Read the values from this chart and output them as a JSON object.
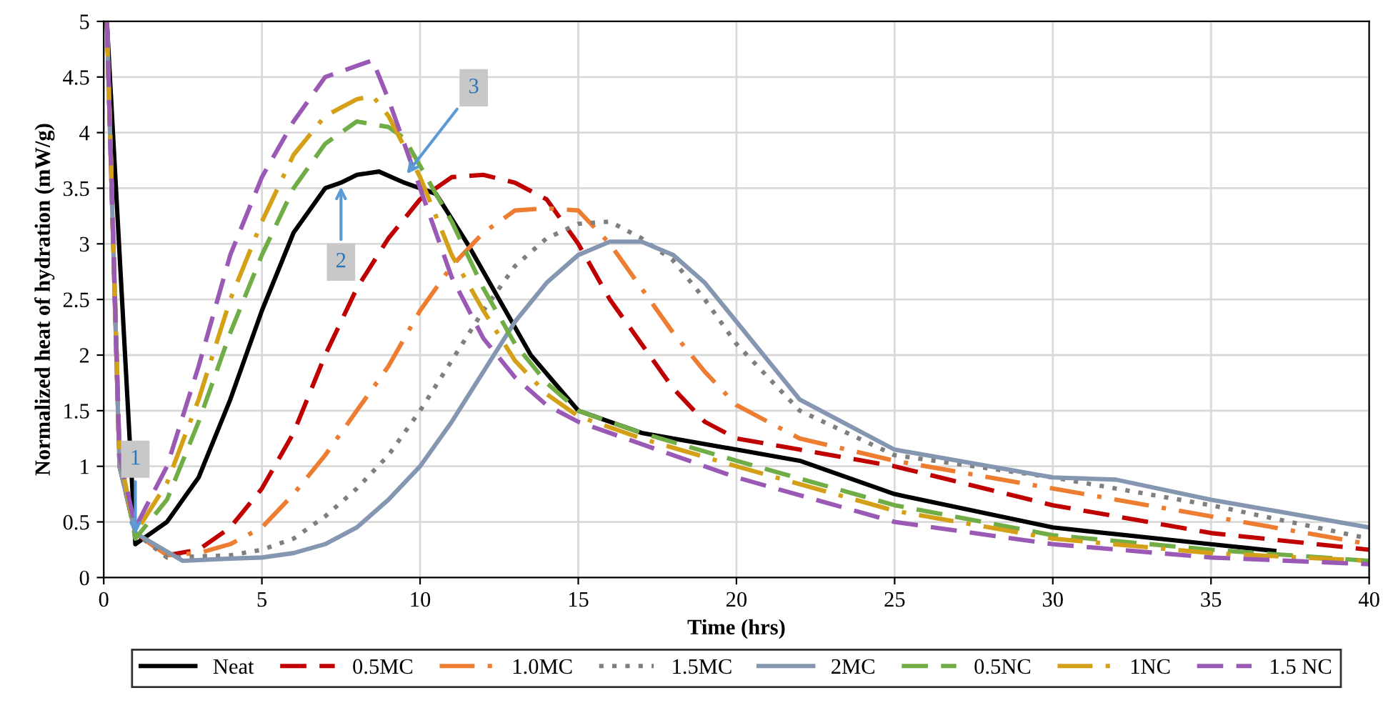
{
  "chart_data": {
    "type": "line",
    "xlabel": "Time (hrs)",
    "ylabel": "Normalized heat of hydration (mW/g)",
    "xlim": [
      0,
      40
    ],
    "xticks": [
      0,
      5,
      10,
      15,
      20,
      25,
      30,
      35,
      40
    ],
    "ylim": [
      0,
      5
    ],
    "yticks": [
      0,
      0.5,
      1,
      1.5,
      2,
      2.5,
      3,
      3.5,
      4,
      4.5,
      5
    ],
    "grid": true,
    "legend": "bottom",
    "marker": "none",
    "series": [
      {
        "name": "Neat",
        "color": "#000000",
        "line_style": "solid",
        "x": [
          0.1,
          1,
          2,
          3,
          4,
          5,
          6,
          7,
          7.5,
          8,
          8.7,
          9.5,
          10.5,
          11.5,
          12.5,
          13.5,
          15,
          17,
          20,
          22,
          25,
          30,
          35,
          37
        ],
        "values": [
          5,
          0.3,
          0.5,
          0.9,
          1.6,
          2.4,
          3.1,
          3.5,
          3.55,
          3.62,
          3.65,
          3.55,
          3.45,
          3.0,
          2.5,
          2.0,
          1.5,
          1.3,
          1.15,
          1.05,
          0.75,
          0.45,
          0.3,
          0.24
        ]
      },
      {
        "name": "0.5MC",
        "color": "#c00000",
        "line_style": "dashed",
        "x": [
          0.1,
          0.5,
          1,
          2,
          3,
          4,
          5,
          6,
          7,
          8,
          9,
          10,
          11,
          12,
          13,
          14,
          15,
          16,
          17,
          18,
          19,
          20,
          22,
          25,
          30,
          35,
          40
        ],
        "values": [
          5,
          1.0,
          0.4,
          0.2,
          0.25,
          0.45,
          0.8,
          1.3,
          2.0,
          2.6,
          3.05,
          3.4,
          3.6,
          3.62,
          3.55,
          3.4,
          3.0,
          2.5,
          2.1,
          1.7,
          1.4,
          1.25,
          1.15,
          1.0,
          0.65,
          0.4,
          0.25
        ]
      },
      {
        "name": "1.0MC",
        "color": "#ed7d31",
        "line_style": "dashdot",
        "x": [
          0.1,
          0.5,
          1,
          2,
          3,
          4,
          5,
          6,
          7,
          8,
          9,
          10,
          11,
          12,
          13,
          14,
          15,
          16,
          17,
          18,
          19,
          20,
          22,
          25,
          30,
          35,
          40
        ],
        "values": [
          5,
          1.0,
          0.4,
          0.2,
          0.22,
          0.3,
          0.45,
          0.75,
          1.1,
          1.5,
          1.9,
          2.4,
          2.8,
          3.1,
          3.3,
          3.32,
          3.3,
          3.0,
          2.6,
          2.2,
          1.85,
          1.55,
          1.25,
          1.05,
          0.8,
          0.55,
          0.3
        ]
      },
      {
        "name": "1.5MC",
        "color": "#7f7f7f",
        "line_style": "dotted",
        "x": [
          0.1,
          0.5,
          1,
          2,
          4,
          5,
          6,
          7,
          8,
          9,
          10,
          11,
          12,
          13,
          14,
          15,
          16,
          17,
          18,
          19,
          20,
          22,
          25,
          30,
          35,
          40
        ],
        "values": [
          5,
          1.0,
          0.4,
          0.18,
          0.2,
          0.25,
          0.35,
          0.55,
          0.8,
          1.1,
          1.5,
          1.95,
          2.4,
          2.8,
          3.05,
          3.18,
          3.2,
          3.05,
          2.85,
          2.5,
          2.1,
          1.5,
          1.1,
          0.9,
          0.65,
          0.35
        ]
      },
      {
        "name": "2MC",
        "color": "#8496b0",
        "line_style": "solid",
        "x": [
          0.1,
          0.5,
          1,
          2.5,
          4,
          5,
          6,
          7,
          8,
          9,
          10,
          11,
          12,
          13,
          14,
          15,
          16,
          17,
          18,
          19,
          20,
          22,
          25,
          30,
          32,
          35,
          40
        ],
        "values": [
          5,
          1.0,
          0.4,
          0.15,
          0.17,
          0.18,
          0.22,
          0.3,
          0.45,
          0.7,
          1.0,
          1.4,
          1.85,
          2.3,
          2.65,
          2.9,
          3.02,
          3.02,
          2.9,
          2.65,
          2.3,
          1.6,
          1.15,
          0.9,
          0.88,
          0.7,
          0.45
        ]
      },
      {
        "name": "0.5NC",
        "color": "#70ad47",
        "line_style": "dashed",
        "x": [
          0.1,
          0.5,
          1,
          2,
          3,
          4,
          5,
          6,
          7,
          8,
          9,
          9.5,
          10,
          11,
          12,
          13,
          14,
          15,
          17,
          20,
          25,
          30,
          35,
          40
        ],
        "values": [
          5,
          1.1,
          0.35,
          0.7,
          1.4,
          2.2,
          2.9,
          3.5,
          3.9,
          4.1,
          4.05,
          3.95,
          3.7,
          3.2,
          2.6,
          2.1,
          1.75,
          1.5,
          1.3,
          1.05,
          0.65,
          0.38,
          0.25,
          0.15
        ]
      },
      {
        "name": "1NC",
        "color": "#d4a017",
        "line_style": "dashdot",
        "x": [
          0.1,
          0.5,
          1,
          2,
          3,
          4,
          5,
          6,
          7,
          8,
          8.5,
          9,
          10,
          11,
          12,
          13,
          14,
          15,
          17,
          20,
          25,
          30,
          35,
          40
        ],
        "values": [
          5,
          1.1,
          0.4,
          0.85,
          1.6,
          2.5,
          3.2,
          3.8,
          4.15,
          4.3,
          4.33,
          4.15,
          3.6,
          2.9,
          2.4,
          1.95,
          1.65,
          1.45,
          1.25,
          1.0,
          0.6,
          0.35,
          0.22,
          0.15
        ]
      },
      {
        "name": "1.5 NC",
        "color": "#9b59b6",
        "line_style": "dashed",
        "x": [
          0.1,
          0.5,
          1,
          2,
          3,
          4,
          5,
          6,
          7,
          7.5,
          8,
          8.5,
          9,
          10,
          11,
          12,
          13,
          14,
          15,
          17,
          20,
          25,
          30,
          35,
          40
        ],
        "values": [
          5,
          1.1,
          0.45,
          1.0,
          1.9,
          2.9,
          3.6,
          4.1,
          4.5,
          4.55,
          4.6,
          4.65,
          4.3,
          3.5,
          2.7,
          2.15,
          1.8,
          1.55,
          1.4,
          1.2,
          0.9,
          0.5,
          0.3,
          0.18,
          0.12
        ]
      }
    ],
    "annotations": [
      {
        "text": "1",
        "x": 1,
        "y": 0.35
      },
      {
        "text": "2",
        "x": 7.5,
        "y": 3.55
      },
      {
        "text": "3",
        "x": 9.5,
        "y": 3.6
      }
    ]
  }
}
